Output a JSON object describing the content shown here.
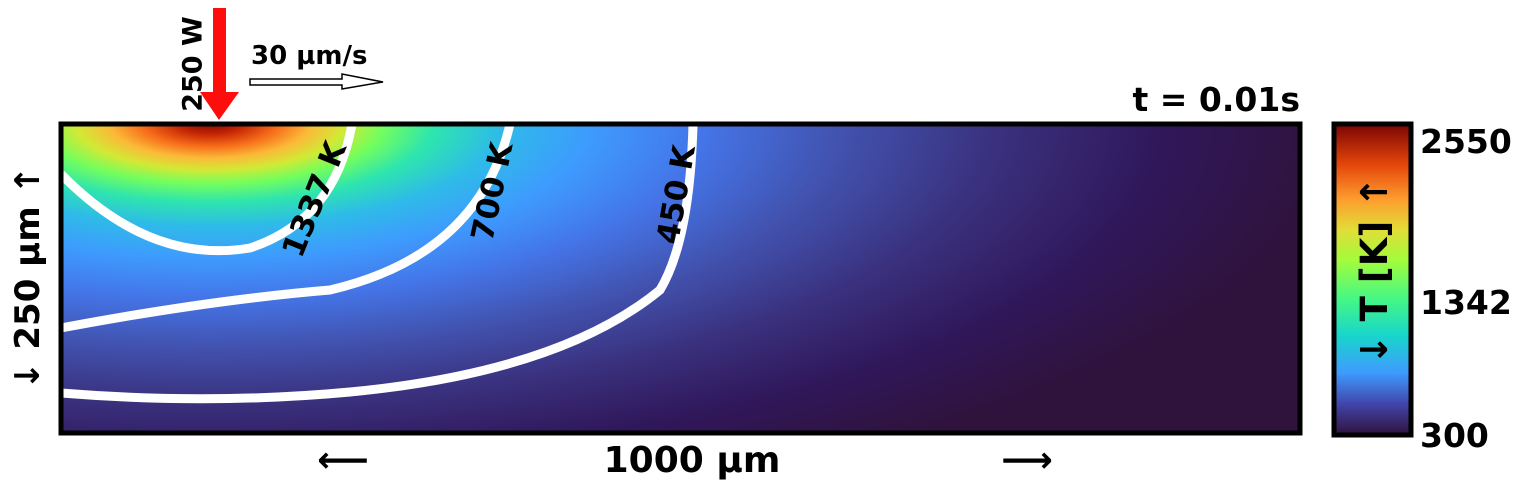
{
  "chart_data": {
    "type": "heatmap",
    "title": "t = 0.01s",
    "x_extent_label": "1000 µm",
    "y_extent_label": "250 µm",
    "x_arrows": [
      "⟵",
      "⟶"
    ],
    "y_arrows": [
      "↓",
      "↑"
    ],
    "colorbar": {
      "label": "T [K]",
      "arrows": [
        "↓",
        "↑"
      ],
      "ticks": [
        "2550",
        "1342",
        "300"
      ],
      "range": [
        300,
        2550
      ],
      "colormap": "turbo"
    },
    "laser": {
      "power_label": "250 W",
      "color": "#ff0000",
      "x_um": 122
    },
    "scan": {
      "speed_label": "30 µm/s"
    },
    "contours": [
      {
        "level": 1337,
        "label": "1337 K"
      },
      {
        "level": 700,
        "label": "700 K"
      },
      {
        "level": 450,
        "label": "450 K"
      }
    ]
  }
}
